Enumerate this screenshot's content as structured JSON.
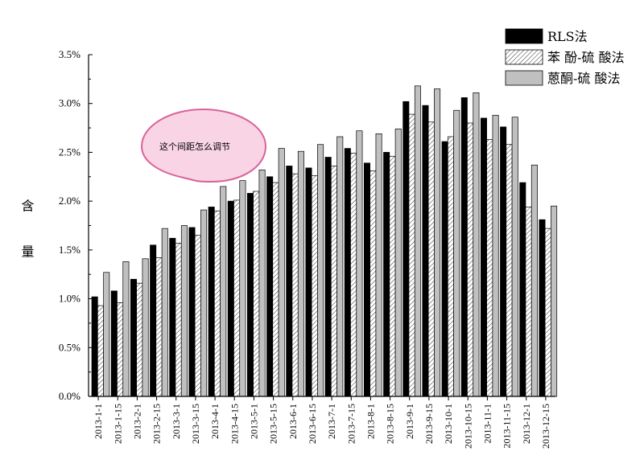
{
  "chart_data": {
    "type": "bar",
    "categories": [
      "2013-1-1",
      "2013-1-15",
      "2013-2-1",
      "2013-2-15",
      "2013-3-1",
      "2013-3-15",
      "2013-4-1",
      "2013-4-15",
      "2013-5-1",
      "2013-5-15",
      "2013-6-1",
      "2013-6-15",
      "2013-7-1",
      "2013-7-15",
      "2013-8-1",
      "2013-8-15",
      "2013-9-1",
      "2013-9-15",
      "2013-10-1",
      "2013-10-15",
      "2013-11-1",
      "2013-11-15",
      "2013-12-1",
      "2013-12-15"
    ],
    "series": [
      {
        "name": "RLS法",
        "fill": "solid",
        "color": "#000000",
        "values": [
          1.02,
          1.08,
          1.2,
          1.55,
          1.62,
          1.73,
          1.94,
          2.0,
          2.08,
          2.25,
          2.36,
          2.34,
          2.45,
          2.54,
          2.39,
          2.5,
          3.02,
          2.98,
          2.61,
          3.06,
          2.85,
          2.76,
          2.19,
          1.81
        ]
      },
      {
        "name": "苯 酚-硫 酸法",
        "fill": "hatched",
        "color": "#ffffff",
        "values": [
          0.93,
          0.96,
          1.16,
          1.42,
          1.57,
          1.65,
          1.9,
          2.01,
          2.1,
          2.19,
          2.28,
          2.26,
          2.36,
          2.49,
          2.31,
          2.46,
          2.89,
          2.81,
          2.66,
          2.8,
          2.63,
          2.58,
          1.94,
          1.72
        ]
      },
      {
        "name": "蒽酮-硫 酸法",
        "fill": "solid",
        "color": "#c0c0c0",
        "values": [
          1.27,
          1.38,
          1.41,
          1.72,
          1.75,
          1.91,
          2.15,
          2.21,
          2.32,
          2.54,
          2.51,
          2.58,
          2.66,
          2.72,
          2.69,
          2.74,
          3.18,
          3.15,
          2.93,
          3.11,
          2.88,
          2.86,
          2.37,
          1.95
        ]
      }
    ],
    "ylabel": "含 量",
    "ylim": [
      0,
      3.5
    ],
    "yticks": [
      "0.0%",
      "0.5%",
      "1.0%",
      "1.5%",
      "2.0%",
      "2.5%",
      "3.0%",
      "3.5%"
    ],
    "ytick_values": [
      0,
      0.5,
      1.0,
      1.5,
      2.0,
      2.5,
      3.0,
      3.5
    ],
    "legend_position": "top-right",
    "annotation": "这个间距怎么调节",
    "annotation_color": "#f9d4e4",
    "annotation_border": "#d9639a"
  }
}
